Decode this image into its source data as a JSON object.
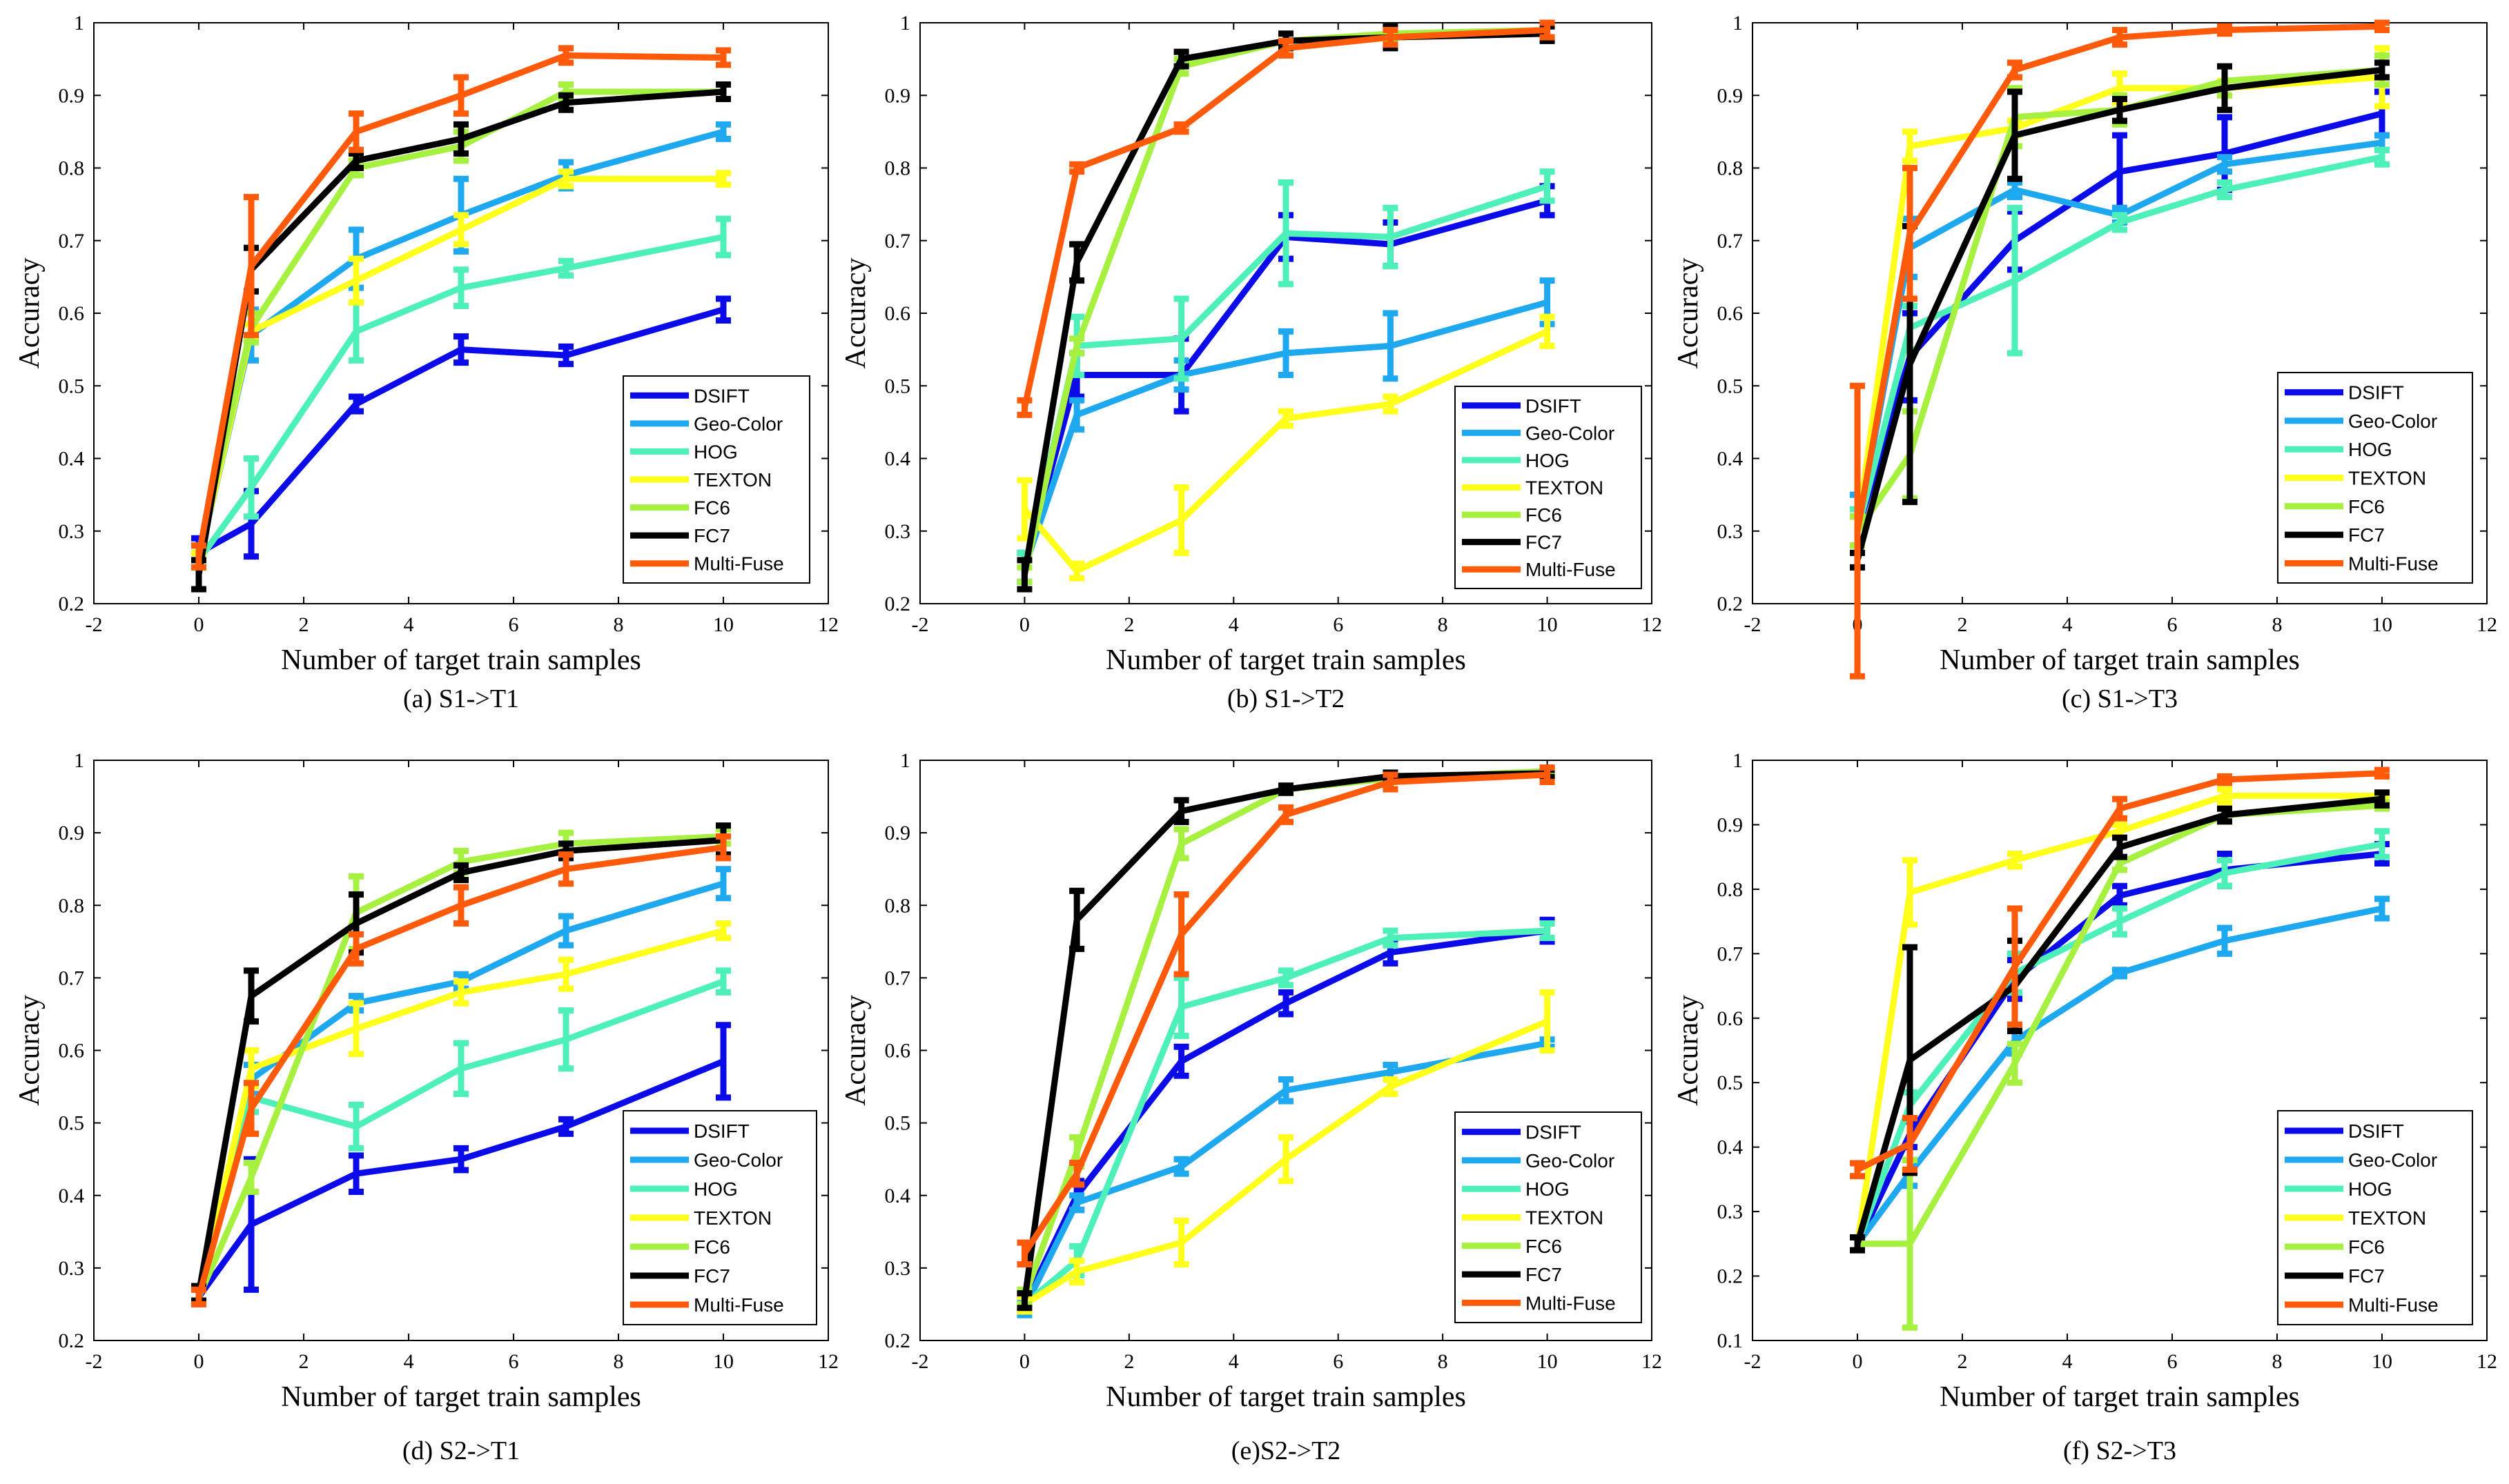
{
  "chart_data": [
    {
      "type": "line",
      "caption": "(a) S1->T1",
      "xlabel": "Number of target train samples",
      "ylabel": "Accuracy",
      "xlim": [
        -2,
        12
      ],
      "ylim": [
        0.2,
        1
      ],
      "xticks": [
        -2,
        0,
        2,
        4,
        6,
        8,
        10,
        12
      ],
      "yticks": [
        0.2,
        0.3,
        0.4,
        0.5,
        0.6,
        0.7,
        0.8,
        0.9,
        1
      ],
      "x": [
        0,
        1,
        3,
        5,
        7,
        10
      ],
      "series": [
        {
          "name": "DSIFT",
          "color": "#0b0bea",
          "values": [
            0.27,
            0.31,
            0.475,
            0.55,
            0.542,
            0.605
          ],
          "err": [
            0.02,
            0.045,
            0.01,
            0.018,
            0.012,
            0.015
          ]
        },
        {
          "name": "Geo-Color",
          "color": "#1ea8f0",
          "values": [
            0.26,
            0.57,
            0.675,
            0.735,
            0.79,
            0.85
          ],
          "err": [
            0.01,
            0.035,
            0.04,
            0.05,
            0.018,
            0.01
          ]
        },
        {
          "name": "HOG",
          "color": "#4ef0ba",
          "values": [
            0.26,
            0.36,
            0.575,
            0.635,
            0.662,
            0.705
          ],
          "err": [
            0.01,
            0.04,
            0.04,
            0.025,
            0.01,
            0.025
          ]
        },
        {
          "name": "TEXTON",
          "color": "#ffff1a",
          "values": [
            0.26,
            0.575,
            0.645,
            0.715,
            0.785,
            0.785
          ],
          "err": [
            0.01,
            0.01,
            0.03,
            0.02,
            0.01,
            0.008
          ]
        },
        {
          "name": "FC6",
          "color": "#a6f040",
          "values": [
            0.27,
            0.58,
            0.8,
            0.83,
            0.905,
            0.905
          ],
          "err": [
            0.01,
            0.02,
            0.01,
            0.02,
            0.01,
            0.01
          ]
        },
        {
          "name": "FC7",
          "color": "#000000",
          "values": [
            0.24,
            0.66,
            0.81,
            0.84,
            0.89,
            0.905
          ],
          "err": [
            0.02,
            0.03,
            0.01,
            0.02,
            0.01,
            0.01
          ]
        },
        {
          "name": "Multi-Fuse",
          "color": "#ff5a0a",
          "values": [
            0.265,
            0.665,
            0.85,
            0.9,
            0.955,
            0.952
          ],
          "err": [
            0.015,
            0.095,
            0.025,
            0.025,
            0.01,
            0.01
          ]
        }
      ]
    },
    {
      "type": "line",
      "caption": "(b) S1->T2",
      "xlabel": "Number of target train samples",
      "ylabel": "Accuracy",
      "xlim": [
        -2,
        12
      ],
      "ylim": [
        0.2,
        1
      ],
      "xticks": [
        -2,
        0,
        2,
        4,
        6,
        8,
        10,
        12
      ],
      "yticks": [
        0.2,
        0.3,
        0.4,
        0.5,
        0.6,
        0.7,
        0.8,
        0.9,
        1
      ],
      "x": [
        0,
        1,
        3,
        5,
        7,
        10
      ],
      "series": [
        {
          "name": "DSIFT",
          "color": "#0b0bea",
          "values": [
            0.25,
            0.515,
            0.515,
            0.705,
            0.695,
            0.755
          ],
          "err": [
            0.02,
            0.03,
            0.05,
            0.03,
            0.03,
            0.02
          ]
        },
        {
          "name": "Geo-Color",
          "color": "#1ea8f0",
          "values": [
            0.25,
            0.46,
            0.515,
            0.545,
            0.555,
            0.615
          ],
          "err": [
            0.02,
            0.02,
            0.02,
            0.03,
            0.045,
            0.03
          ]
        },
        {
          "name": "HOG",
          "color": "#4ef0ba",
          "values": [
            0.25,
            0.555,
            0.565,
            0.71,
            0.705,
            0.775
          ],
          "err": [
            0.02,
            0.04,
            0.055,
            0.07,
            0.04,
            0.02
          ]
        },
        {
          "name": "TEXTON",
          "color": "#ffff1a",
          "values": [
            0.33,
            0.245,
            0.315,
            0.455,
            0.475,
            0.575
          ],
          "err": [
            0.04,
            0.01,
            0.045,
            0.01,
            0.01,
            0.02
          ]
        },
        {
          "name": "FC6",
          "color": "#a6f040",
          "values": [
            0.24,
            0.555,
            0.94,
            0.975,
            0.985,
            0.99
          ],
          "err": [
            0.01,
            0.01,
            0.01,
            0.01,
            0.01,
            0.01
          ]
        },
        {
          "name": "FC7",
          "color": "#000000",
          "values": [
            0.24,
            0.67,
            0.95,
            0.975,
            0.98,
            0.985
          ],
          "err": [
            0.02,
            0.025,
            0.01,
            0.01,
            0.015,
            0.01
          ]
        },
        {
          "name": "Multi-Fuse",
          "color": "#ff5a0a",
          "values": [
            0.47,
            0.8,
            0.855,
            0.965,
            0.98,
            0.99
          ],
          "err": [
            0.01,
            0.005,
            0.005,
            0.01,
            0.01,
            0.01
          ]
        }
      ]
    },
    {
      "type": "line",
      "caption": "(c) S1->T3",
      "xlabel": "Number of target train samples",
      "ylabel": "Accuracy",
      "xlim": [
        -2,
        12
      ],
      "ylim": [
        0.2,
        1
      ],
      "xticks": [
        -2,
        0,
        2,
        4,
        6,
        8,
        10,
        12
      ],
      "yticks": [
        0.2,
        0.3,
        0.4,
        0.5,
        0.6,
        0.7,
        0.8,
        0.9,
        1
      ],
      "x": [
        0,
        1,
        3,
        5,
        7,
        10
      ],
      "series": [
        {
          "name": "DSIFT",
          "color": "#0b0bea",
          "values": [
            0.3,
            0.54,
            0.7,
            0.795,
            0.82,
            0.875
          ],
          "err": [
            0.02,
            0.06,
            0.04,
            0.05,
            0.05,
            0.03
          ]
        },
        {
          "name": "Geo-Color",
          "color": "#1ea8f0",
          "values": [
            0.3,
            0.69,
            0.77,
            0.735,
            0.805,
            0.835
          ],
          "err": [
            0.05,
            0.04,
            0.01,
            0.01,
            0.01,
            0.01
          ]
        },
        {
          "name": "HOG",
          "color": "#4ef0ba",
          "values": [
            0.3,
            0.58,
            0.645,
            0.725,
            0.77,
            0.815
          ],
          "err": [
            0.03,
            0.03,
            0.1,
            0.01,
            0.01,
            0.01
          ]
        },
        {
          "name": "TEXTON",
          "color": "#ffff1a",
          "values": [
            0.3,
            0.83,
            0.855,
            0.91,
            0.91,
            0.925
          ],
          "err": [
            0.02,
            0.02,
            0.01,
            0.02,
            0.01,
            0.04
          ]
        },
        {
          "name": "FC6",
          "color": "#a6f040",
          "values": [
            0.3,
            0.405,
            0.87,
            0.88,
            0.92,
            0.935
          ],
          "err": [
            0.02,
            0.06,
            0.04,
            0.02,
            0.02,
            0.02
          ]
        },
        {
          "name": "FC7",
          "color": "#000000",
          "values": [
            0.26,
            0.53,
            0.845,
            0.88,
            0.91,
            0.935
          ],
          "err": [
            0.01,
            0.19,
            0.06,
            0.015,
            0.03,
            0.01
          ]
        },
        {
          "name": "Multi-Fuse",
          "color": "#ff5a0a",
          "values": [
            0.3,
            0.71,
            0.935,
            0.98,
            0.99,
            0.995
          ],
          "err": [
            0.2,
            0.09,
            0.01,
            0.01,
            0.005,
            0.005
          ]
        }
      ]
    },
    {
      "type": "line",
      "caption": "(d) S2->T1",
      "xlabel": "Number of target train samples",
      "ylabel": "Accuracy",
      "xlim": [
        -2,
        12
      ],
      "ylim": [
        0.2,
        1
      ],
      "xticks": [
        -2,
        0,
        2,
        4,
        6,
        8,
        10,
        12
      ],
      "yticks": [
        0.2,
        0.3,
        0.4,
        0.5,
        0.6,
        0.7,
        0.8,
        0.9,
        1
      ],
      "x": [
        0,
        1,
        3,
        5,
        7,
        10
      ],
      "series": [
        {
          "name": "DSIFT",
          "color": "#0b0bea",
          "values": [
            0.26,
            0.36,
            0.43,
            0.45,
            0.495,
            0.585
          ],
          "err": [
            0.01,
            0.09,
            0.025,
            0.015,
            0.01,
            0.05
          ]
        },
        {
          "name": "Geo-Color",
          "color": "#1ea8f0",
          "values": [
            0.26,
            0.56,
            0.665,
            0.695,
            0.765,
            0.83
          ],
          "err": [
            0.01,
            0.02,
            0.01,
            0.01,
            0.02,
            0.02
          ]
        },
        {
          "name": "HOG",
          "color": "#4ef0ba",
          "values": [
            0.26,
            0.535,
            0.495,
            0.575,
            0.615,
            0.695
          ],
          "err": [
            0.01,
            0.02,
            0.03,
            0.035,
            0.04,
            0.015
          ]
        },
        {
          "name": "TEXTON",
          "color": "#ffff1a",
          "values": [
            0.26,
            0.575,
            0.63,
            0.68,
            0.705,
            0.765
          ],
          "err": [
            0.01,
            0.025,
            0.035,
            0.015,
            0.02,
            0.01
          ]
        },
        {
          "name": "FC6",
          "color": "#a6f040",
          "values": [
            0.26,
            0.425,
            0.79,
            0.86,
            0.885,
            0.895
          ],
          "err": [
            0.01,
            0.02,
            0.05,
            0.015,
            0.015,
            0.01
          ]
        },
        {
          "name": "FC7",
          "color": "#000000",
          "values": [
            0.265,
            0.675,
            0.775,
            0.845,
            0.875,
            0.89
          ],
          "err": [
            0.01,
            0.035,
            0.04,
            0.01,
            0.01,
            0.02
          ]
        },
        {
          "name": "Multi-Fuse",
          "color": "#ff5a0a",
          "values": [
            0.26,
            0.52,
            0.74,
            0.8,
            0.85,
            0.88
          ],
          "err": [
            0.01,
            0.035,
            0.02,
            0.025,
            0.02,
            0.015
          ]
        }
      ]
    },
    {
      "type": "line",
      "caption": "(e)S2->T2",
      "xlabel": "Number of target train samples",
      "ylabel": "Accuracy",
      "xlim": [
        -2,
        12
      ],
      "ylim": [
        0.2,
        1
      ],
      "xticks": [
        -2,
        0,
        2,
        4,
        6,
        8,
        10,
        12
      ],
      "yticks": [
        0.2,
        0.3,
        0.4,
        0.5,
        0.6,
        0.7,
        0.8,
        0.9,
        1
      ],
      "x": [
        0,
        1,
        3,
        5,
        7,
        10
      ],
      "series": [
        {
          "name": "DSIFT",
          "color": "#0b0bea",
          "values": [
            0.25,
            0.4,
            0.585,
            0.665,
            0.735,
            0.765
          ],
          "err": [
            0.01,
            0.02,
            0.02,
            0.015,
            0.015,
            0.015
          ]
        },
        {
          "name": "Geo-Color",
          "color": "#1ea8f0",
          "values": [
            0.245,
            0.39,
            0.44,
            0.545,
            0.57,
            0.61
          ],
          "err": [
            0.01,
            0.01,
            0.01,
            0.015,
            0.01,
            0.005
          ]
        },
        {
          "name": "HOG",
          "color": "#4ef0ba",
          "values": [
            0.25,
            0.31,
            0.66,
            0.7,
            0.755,
            0.765
          ],
          "err": [
            0.01,
            0.02,
            0.04,
            0.01,
            0.01,
            0.01
          ]
        },
        {
          "name": "TEXTON",
          "color": "#ffff1a",
          "values": [
            0.25,
            0.295,
            0.335,
            0.45,
            0.55,
            0.64
          ],
          "err": [
            0.01,
            0.015,
            0.03,
            0.03,
            0.01,
            0.04
          ]
        },
        {
          "name": "FC6",
          "color": "#a6f040",
          "values": [
            0.26,
            0.46,
            0.885,
            0.96,
            0.975,
            0.985
          ],
          "err": [
            0.01,
            0.02,
            0.02,
            0.005,
            0.005,
            0.005
          ]
        },
        {
          "name": "FC7",
          "color": "#000000",
          "values": [
            0.255,
            0.78,
            0.93,
            0.96,
            0.978,
            0.982
          ],
          "err": [
            0.01,
            0.04,
            0.015,
            0.005,
            0.005,
            0.005
          ]
        },
        {
          "name": "Multi-Fuse",
          "color": "#ff5a0a",
          "values": [
            0.32,
            0.43,
            0.76,
            0.925,
            0.97,
            0.98
          ],
          "err": [
            0.015,
            0.015,
            0.055,
            0.01,
            0.01,
            0.01
          ]
        }
      ]
    },
    {
      "type": "line",
      "caption": "(f) S2->T3",
      "xlabel": "Number of target train samples",
      "ylabel": "Accuracy",
      "xlim": [
        -2,
        12
      ],
      "ylim": [
        0.1,
        1
      ],
      "xticks": [
        -2,
        0,
        2,
        4,
        6,
        8,
        10,
        12
      ],
      "yticks": [
        0.1,
        0.2,
        0.3,
        0.4,
        0.5,
        0.6,
        0.7,
        0.8,
        0.9,
        1
      ],
      "x": [
        0,
        1,
        3,
        5,
        7,
        10
      ],
      "series": [
        {
          "name": "DSIFT",
          "color": "#0b0bea",
          "values": [
            0.25,
            0.42,
            0.66,
            0.79,
            0.83,
            0.855
          ],
          "err": [
            0.01,
            0.02,
            0.03,
            0.015,
            0.025,
            0.015
          ]
        },
        {
          "name": "Geo-Color",
          "color": "#1ea8f0",
          "values": [
            0.25,
            0.36,
            0.565,
            0.67,
            0.72,
            0.77
          ],
          "err": [
            0.01,
            0.02,
            0.02,
            0.005,
            0.02,
            0.015
          ]
        },
        {
          "name": "HOG",
          "color": "#4ef0ba",
          "values": [
            0.25,
            0.465,
            0.67,
            0.75,
            0.825,
            0.87
          ],
          "err": [
            0.01,
            0.02,
            0.03,
            0.02,
            0.02,
            0.02
          ]
        },
        {
          "name": "TEXTON",
          "color": "#ffff1a",
          "values": [
            0.25,
            0.795,
            0.845,
            0.89,
            0.945,
            0.945
          ],
          "err": [
            0.01,
            0.05,
            0.01,
            0.01,
            0.01,
            0.005
          ]
        },
        {
          "name": "FC6",
          "color": "#a6f040",
          "values": [
            0.25,
            0.25,
            0.53,
            0.84,
            0.915,
            0.93
          ],
          "err": [
            0.01,
            0.13,
            0.03,
            0.01,
            0.01,
            0.005
          ]
        },
        {
          "name": "FC7",
          "color": "#000000",
          "values": [
            0.25,
            0.535,
            0.65,
            0.865,
            0.915,
            0.94
          ],
          "err": [
            0.01,
            0.175,
            0.07,
            0.015,
            0.01,
            0.01
          ]
        },
        {
          "name": "Multi-Fuse",
          "color": "#ff5a0a",
          "values": [
            0.365,
            0.405,
            0.68,
            0.925,
            0.97,
            0.98
          ],
          "err": [
            0.01,
            0.04,
            0.09,
            0.015,
            0.005,
            0.005
          ]
        }
      ]
    }
  ]
}
